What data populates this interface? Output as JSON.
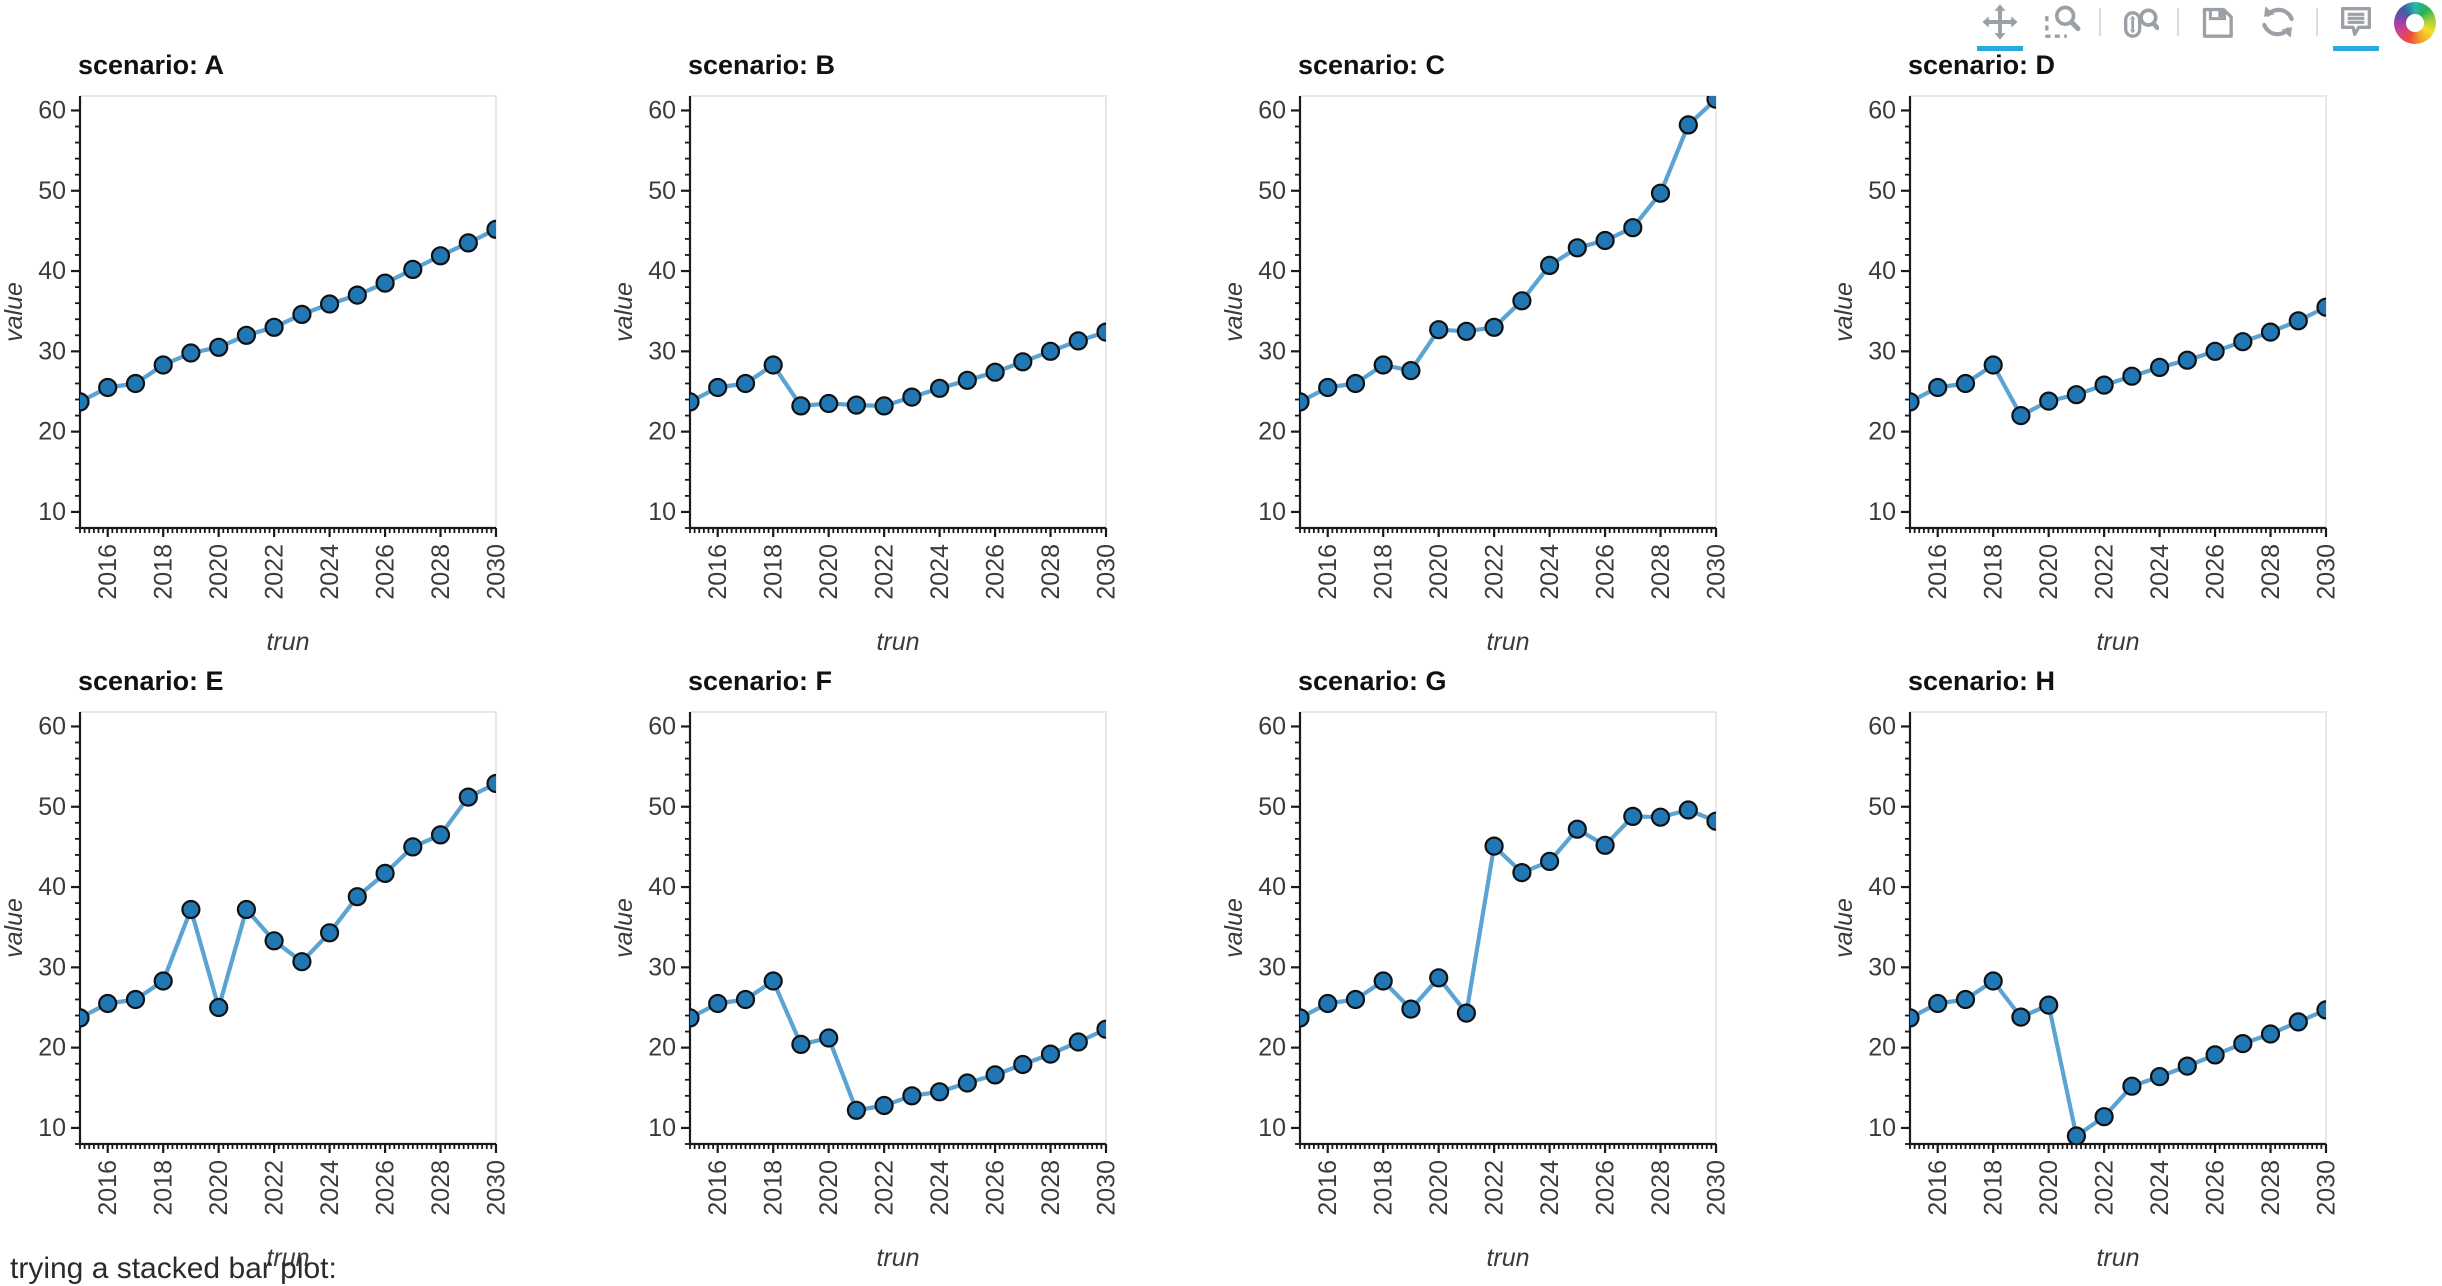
{
  "toolbar": {
    "tools": [
      {
        "id": "pan",
        "label": "Pan",
        "active": true,
        "group": 0
      },
      {
        "id": "box-zoom",
        "label": "Box Zoom",
        "active": false,
        "group": 0
      },
      {
        "id": "wheel-zoom",
        "label": "Wheel Zoom",
        "active": false,
        "group": 1
      },
      {
        "id": "save",
        "label": "Save",
        "active": false,
        "group": 2
      },
      {
        "id": "reset",
        "label": "Reset",
        "active": false,
        "group": 2
      },
      {
        "id": "hover",
        "label": "Hover",
        "active": true,
        "group": 3
      }
    ],
    "logo": "Bokeh"
  },
  "chart_data": {
    "type": "line",
    "facet_title_prefix": "scenario: ",
    "xlabel": "trun",
    "ylabel": "value",
    "xlim": [
      2015,
      2030
    ],
    "ylim": [
      8,
      61.8
    ],
    "yticks": [
      10,
      20,
      30,
      40,
      50,
      60
    ],
    "xticks": [
      2016,
      2018,
      2020,
      2022,
      2024,
      2026,
      2028,
      2030
    ],
    "grid": false,
    "legend": "none",
    "x": [
      2015,
      2016,
      2017,
      2018,
      2019,
      2020,
      2021,
      2022,
      2023,
      2024,
      2025,
      2026,
      2027,
      2028,
      2029,
      2030
    ],
    "series": [
      {
        "name": "A",
        "values": [
          23.7,
          25.5,
          26.0,
          28.3,
          29.8,
          30.5,
          32.0,
          33.0,
          34.6,
          35.9,
          37.0,
          38.5,
          40.2,
          41.9,
          43.5,
          45.2
        ]
      },
      {
        "name": "B",
        "values": [
          23.7,
          25.5,
          26.0,
          28.3,
          23.2,
          23.5,
          23.3,
          23.2,
          24.3,
          25.4,
          26.4,
          27.4,
          28.7,
          30.0,
          31.3,
          32.4
        ]
      },
      {
        "name": "C",
        "values": [
          23.7,
          25.5,
          26.0,
          28.3,
          27.6,
          32.7,
          32.5,
          33.0,
          36.3,
          40.7,
          42.9,
          43.8,
          45.4,
          49.7,
          58.2,
          61.4
        ]
      },
      {
        "name": "D",
        "values": [
          23.7,
          25.5,
          26.0,
          28.3,
          22.0,
          23.8,
          24.6,
          25.8,
          26.9,
          28.0,
          28.9,
          30.0,
          31.2,
          32.4,
          33.8,
          35.5
        ]
      },
      {
        "name": "E",
        "values": [
          23.7,
          25.5,
          26.0,
          28.3,
          37.2,
          25.0,
          37.2,
          33.3,
          30.7,
          34.3,
          38.8,
          41.7,
          45.0,
          46.5,
          51.2,
          52.9
        ]
      },
      {
        "name": "F",
        "values": [
          23.7,
          25.5,
          26.0,
          28.3,
          20.4,
          21.2,
          12.2,
          12.8,
          14.0,
          14.5,
          15.6,
          16.6,
          17.9,
          19.2,
          20.7,
          22.3
        ]
      },
      {
        "name": "G",
        "values": [
          23.7,
          25.5,
          26.0,
          28.3,
          24.8,
          28.7,
          24.3,
          45.1,
          41.8,
          43.2,
          47.2,
          45.2,
          48.8,
          48.7,
          49.6,
          48.2
        ]
      },
      {
        "name": "H",
        "values": [
          23.7,
          25.5,
          26.0,
          28.3,
          23.8,
          25.3,
          9.0,
          11.4,
          15.2,
          16.4,
          17.7,
          19.1,
          20.5,
          21.7,
          23.2,
          24.7
        ]
      }
    ]
  },
  "footer": {
    "text": "trying a stacked bar plot:"
  },
  "colors": {
    "line": "#5ba3d2",
    "marker_fill": "#2077b4",
    "marker_stroke": "#111111",
    "axis": "#1a1a1a",
    "frame_border": "#e7e7e7",
    "toolbar_icon": "#9aa0a5",
    "active_underline": "#29abe2"
  }
}
